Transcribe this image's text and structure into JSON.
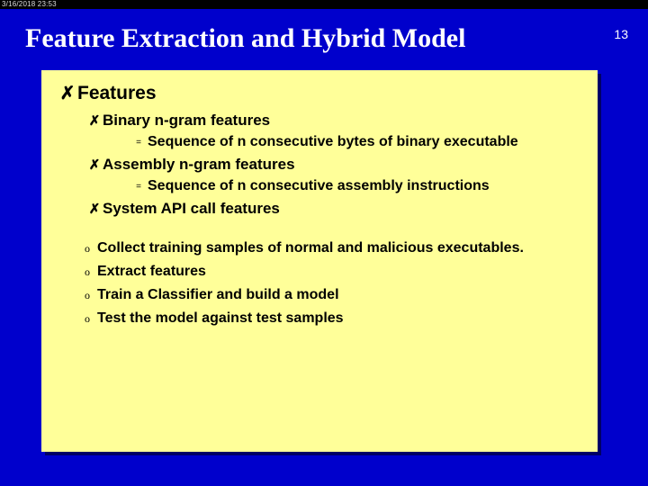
{
  "timestamp": "3/16/2018  23:53",
  "title": "Feature Extraction and Hybrid Model",
  "page_number": "13",
  "colors": {
    "slide_bg": "#0000cc",
    "content_bg": "#ffff99",
    "title_color": "#ffffff"
  },
  "content": {
    "heading": "Features",
    "features": [
      {
        "label": "Binary n-gram features",
        "detail": "Sequence of n consecutive bytes of binary executable"
      },
      {
        "label": "Assembly n-gram features",
        "detail": "Sequence of n consecutive assembly instructions"
      },
      {
        "label": "System API call features",
        "detail": null
      }
    ],
    "steps": [
      "Collect training samples of normal and malicious executables.",
      "Extract features",
      "Train a Classifier and build a model",
      "Test the model against test samples"
    ]
  },
  "bullets": {
    "x": "✗",
    "eq": "=",
    "o": "o"
  }
}
